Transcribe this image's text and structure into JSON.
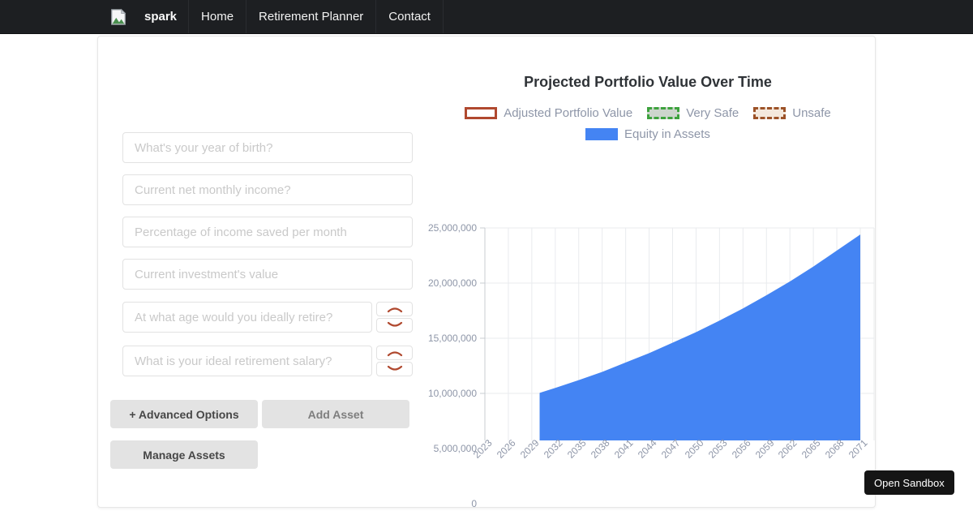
{
  "navbar": {
    "brand": "spark",
    "items": [
      {
        "label": "Home"
      },
      {
        "label": "Retirement Planner"
      },
      {
        "label": "Contact"
      }
    ]
  },
  "form": {
    "inputs": [
      {
        "placeholder": "What's your year of birth?"
      },
      {
        "placeholder": "Current net monthly income?"
      },
      {
        "placeholder": "Percentage of income saved per month"
      },
      {
        "placeholder": "Current investment's value"
      },
      {
        "placeholder": "At what age would you ideally retire?"
      },
      {
        "placeholder": "What is your ideal retirement salary?"
      }
    ],
    "buttons": {
      "advanced": "+ Advanced Options",
      "add_asset": "Add Asset",
      "manage_assets": "Manage Assets"
    }
  },
  "chart_data": {
    "type": "area",
    "title": "Projected Portfolio Value Over Time",
    "xlabel": "",
    "ylabel": "",
    "grid": true,
    "legend_position": "top",
    "x_ticks": [
      "2023",
      "2026",
      "2029",
      "2032",
      "2035",
      "2038",
      "2041",
      "2044",
      "2047",
      "2050",
      "2053",
      "2056",
      "2059",
      "2062",
      "2065",
      "2068",
      "2071"
    ],
    "x_tick_years": [
      2023,
      2026,
      2029,
      2032,
      2035,
      2038,
      2041,
      2044,
      2047,
      2050,
      2053,
      2056,
      2059,
      2062,
      2065,
      2068,
      2071
    ],
    "y_ticks": [
      {
        "label": "0",
        "value": 0
      },
      {
        "label": "5,000,000",
        "value": 5000000
      },
      {
        "label": "10,000,000",
        "value": 10000000
      },
      {
        "label": "15,000,000",
        "value": 15000000
      },
      {
        "label": "20,000,000",
        "value": 20000000
      },
      {
        "label": "25,000,000",
        "value": 25000000
      }
    ],
    "xlim": [
      2023,
      2072.7
    ],
    "ylim": [
      0,
      25000000
    ],
    "legend": [
      {
        "label": "Adjusted Portfolio Value",
        "fill": "#ffffff",
        "border": "#b0492f",
        "border_style": "solid"
      },
      {
        "label": "Very Safe",
        "fill": "#ccd5cc",
        "border": "#3da23d",
        "border_style": "dashed"
      },
      {
        "label": "Unsafe",
        "fill": "#f4e8dc",
        "border": "#9c5228",
        "border_style": "dashed"
      },
      {
        "label": "Equity in Assets",
        "fill": "#4484f3",
        "border": "#4484f3",
        "border_style": "solid"
      }
    ],
    "series": [
      {
        "name": "Equity in Assets",
        "color": "#4484f3",
        "points": [
          [
            2030,
            10050000
          ],
          [
            2032,
            10500000
          ],
          [
            2035,
            11200000
          ],
          [
            2038,
            11950000
          ],
          [
            2041,
            12800000
          ],
          [
            2044,
            13650000
          ],
          [
            2047,
            14600000
          ],
          [
            2050,
            15550000
          ],
          [
            2053,
            16600000
          ],
          [
            2056,
            17700000
          ],
          [
            2059,
            18900000
          ],
          [
            2062,
            20150000
          ],
          [
            2065,
            21500000
          ],
          [
            2068,
            22950000
          ],
          [
            2071,
            24400000
          ]
        ]
      }
    ],
    "axis_color": "#c9ccd1",
    "grid_color": "#e9ebee"
  },
  "sandbox": {
    "label": "Open Sandbox"
  }
}
